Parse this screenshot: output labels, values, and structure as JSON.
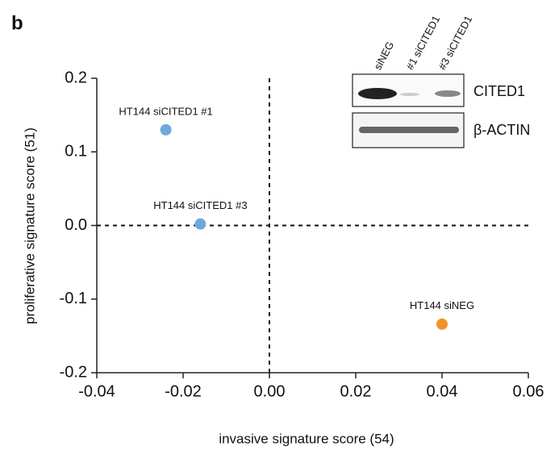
{
  "chart_data": {
    "type": "scatter",
    "panel_label": "b",
    "x_label": "invasive signature score (54)",
    "y_label": "proliferative signature score (51)",
    "xlim": [
      -0.04,
      0.06
    ],
    "xticks": [
      -0.04,
      -0.02,
      {
        "value": 0,
        "label": "0.00"
      },
      0.02,
      0.04,
      0.06
    ],
    "ylim": [
      -0.2,
      0.2
    ],
    "yticks": [
      -0.2,
      -0.1,
      {
        "value": 0,
        "label": "0.0"
      },
      0.1,
      0.2
    ],
    "reference_lines": {
      "x": 0,
      "y": 0
    },
    "series": [
      {
        "name": "HT144 siCITED1 #1",
        "color": "#6fa8dc",
        "x": [
          -0.024
        ],
        "values": [
          0.13
        ]
      },
      {
        "name": "HT144 siCITED1 #3",
        "color": "#6fa8dc",
        "x": [
          -0.016
        ],
        "values": [
          0.002
        ]
      },
      {
        "name": "HT144 siNEG",
        "color": "#f0932b",
        "x": [
          0.04
        ],
        "values": [
          -0.134
        ]
      }
    ],
    "inset": {
      "lanes": [
        "siNEG",
        "#1 siCITED1",
        "#3 siCITED1"
      ],
      "bands": [
        "CITED1",
        "β-ACTIN"
      ]
    }
  }
}
